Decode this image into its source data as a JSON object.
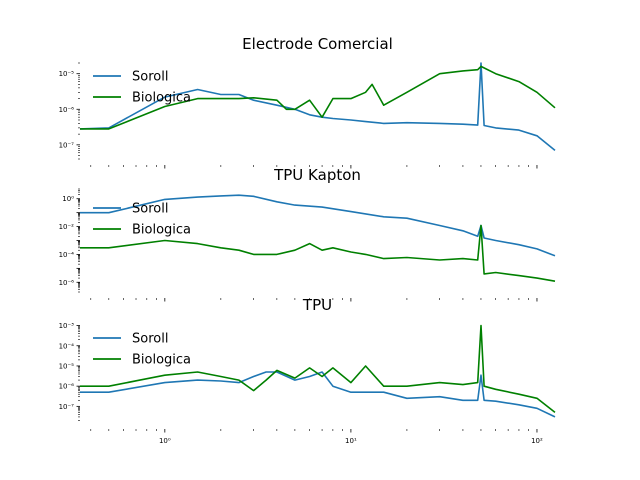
{
  "chart_data": [
    {
      "type": "line",
      "title": "Electrode Comercial",
      "xscale": "log",
      "yscale": "log",
      "xlim": [
        0.35,
        125
      ],
      "ylim": [
        4e-08,
        2e-05
      ],
      "grid": false,
      "legend": "upper-left",
      "yticks": [
        1e-07,
        1e-06,
        1e-05
      ],
      "ytick_labels": [
        "10⁻⁷",
        "10⁻⁶",
        "10⁻⁵"
      ],
      "series": [
        {
          "name": "Soroll",
          "color": "#1f77b4",
          "x": [
            0.35,
            0.5,
            1.0,
            1.5,
            2.0,
            2.5,
            3.0,
            4.0,
            5.0,
            6.0,
            7.0,
            8.0,
            10.0,
            12.0,
            15.0,
            20.0,
            30.0,
            40.0,
            48.0,
            50.0,
            52.0,
            60.0,
            80.0,
            100.0,
            125.0
          ],
          "y": [
            2.8e-07,
            3e-07,
            2.2e-06,
            3.6e-06,
            2.6e-06,
            2.6e-06,
            1.8e-06,
            1.3e-06,
            1e-06,
            7e-07,
            6e-07,
            5.5e-07,
            5e-07,
            4.5e-07,
            4e-07,
            4.2e-07,
            4e-07,
            3.8e-07,
            3.6e-07,
            2.1e-05,
            3.5e-07,
            3e-07,
            2.6e-07,
            1.8e-07,
            7e-08
          ]
        },
        {
          "name": "Biologica",
          "color": "#008000",
          "x": [
            0.35,
            0.5,
            1.0,
            1.5,
            2.0,
            2.5,
            3.0,
            4.0,
            4.5,
            5.0,
            6.0,
            7.0,
            8.0,
            10.0,
            12.0,
            13.0,
            15.0,
            20.0,
            30.0,
            40.0,
            48.0,
            50.0,
            60.0,
            80.0,
            100.0,
            125.0
          ],
          "y": [
            2.8e-07,
            2.8e-07,
            1.2e-06,
            2e-06,
            2e-06,
            2e-06,
            2.1e-06,
            1.8e-06,
            1e-06,
            1e-06,
            1.8e-06,
            6e-07,
            2e-06,
            2e-06,
            3e-06,
            5e-06,
            1.3e-06,
            3e-06,
            1e-05,
            1.2e-05,
            1.3e-05,
            1.6e-05,
            1e-05,
            6e-06,
            3e-06,
            1.1e-06
          ]
        }
      ]
    },
    {
      "type": "line",
      "title": "TPU Kapton",
      "xscale": "log",
      "yscale": "log",
      "xlim": [
        0.35,
        125
      ],
      "ylim": [
        2e-07,
        5
      ],
      "grid": false,
      "legend": "upper-left",
      "yticks": [
        1e-06,
        0.0001,
        0.01,
        1
      ],
      "ytick_labels": [
        "10⁻⁶",
        "10⁻⁴",
        "10⁻²",
        "10⁰"
      ],
      "series": [
        {
          "name": "Soroll",
          "color": "#1f77b4",
          "x": [
            0.35,
            0.5,
            1.0,
            1.5,
            2.0,
            2.5,
            3.0,
            4.0,
            5.0,
            7.0,
            10.0,
            15.0,
            20.0,
            30.0,
            40.0,
            48.0,
            50.0,
            52.0,
            60.0,
            80.0,
            100.0,
            125.0
          ],
          "y": [
            0.1,
            0.1,
            0.9,
            1.3,
            1.6,
            1.8,
            1.5,
            0.6,
            0.35,
            0.25,
            0.12,
            0.05,
            0.04,
            0.012,
            0.005,
            0.002,
            0.012,
            0.0015,
            0.001,
            0.0005,
            0.00025,
            8e-05
          ]
        },
        {
          "name": "Biologica",
          "color": "#008000",
          "x": [
            0.35,
            0.5,
            1.0,
            1.5,
            2.0,
            2.5,
            3.0,
            4.0,
            5.0,
            6.0,
            7.0,
            8.0,
            10.0,
            12.0,
            15.0,
            20.0,
            30.0,
            40.0,
            48.0,
            50.0,
            52.0,
            60.0,
            80.0,
            100.0,
            125.0
          ],
          "y": [
            0.0003,
            0.0003,
            0.001,
            0.0006,
            0.0003,
            0.0002,
            0.0001,
            0.0001,
            0.0002,
            0.0006,
            0.0002,
            0.0003,
            0.00015,
            0.0001,
            5e-05,
            6e-05,
            4e-05,
            5e-05,
            4e-05,
            0.012,
            4e-06,
            5e-06,
            3e-06,
            2e-06,
            1.2e-06
          ]
        }
      ]
    },
    {
      "type": "line",
      "title": "TPU",
      "xscale": "log",
      "yscale": "log",
      "xlim": [
        0.35,
        125
      ],
      "ylim": [
        1.5e-08,
        0.0015
      ],
      "grid": false,
      "legend": "upper-left",
      "yticks": [
        1e-07,
        1e-06,
        1e-05,
        0.0001,
        0.001
      ],
      "ytick_labels": [
        "10⁻⁷",
        "10⁻⁶",
        "10⁻⁵",
        "10⁻⁴",
        "10⁻³"
      ],
      "xticks": [
        1,
        10,
        100
      ],
      "xtick_labels": [
        "10⁰",
        "10¹",
        "10²"
      ],
      "series": [
        {
          "name": "Soroll",
          "color": "#1f77b4",
          "x": [
            0.35,
            0.5,
            1.0,
            1.5,
            2.0,
            2.5,
            3.0,
            3.5,
            4.0,
            5.0,
            6.0,
            7.0,
            8.0,
            10.0,
            15.0,
            20.0,
            30.0,
            40.0,
            48.0,
            50.0,
            52.0,
            60.0,
            80.0,
            100.0,
            125.0
          ],
          "y": [
            5e-07,
            5e-07,
            1.5e-06,
            2e-06,
            1.8e-06,
            1.5e-06,
            3e-06,
            5e-06,
            5e-06,
            2e-06,
            3e-06,
            5e-06,
            1e-06,
            5e-07,
            5e-07,
            2.5e-07,
            3e-07,
            2e-07,
            2e-07,
            3.5e-06,
            2e-07,
            1.8e-07,
            1.2e-07,
            8e-08,
            3e-08
          ]
        },
        {
          "name": "Biologica",
          "color": "#008000",
          "x": [
            0.35,
            0.5,
            1.0,
            1.5,
            2.0,
            2.5,
            3.0,
            3.5,
            4.0,
            5.0,
            6.0,
            7.0,
            8.0,
            10.0,
            12.0,
            15.0,
            20.0,
            30.0,
            40.0,
            48.0,
            50.0,
            52.0,
            60.0,
            80.0,
            100.0,
            125.0
          ],
          "y": [
            1e-06,
            1e-06,
            3.5e-06,
            5e-06,
            3e-06,
            2e-06,
            6e-07,
            2e-06,
            6e-06,
            2.5e-06,
            8e-06,
            3e-06,
            8e-06,
            1.5e-06,
            1e-05,
            1e-06,
            1e-06,
            1.5e-06,
            1.2e-06,
            1.5e-06,
            0.001,
            1e-06,
            7e-07,
            4e-07,
            2.5e-07,
            5e-08
          ]
        }
      ]
    }
  ]
}
